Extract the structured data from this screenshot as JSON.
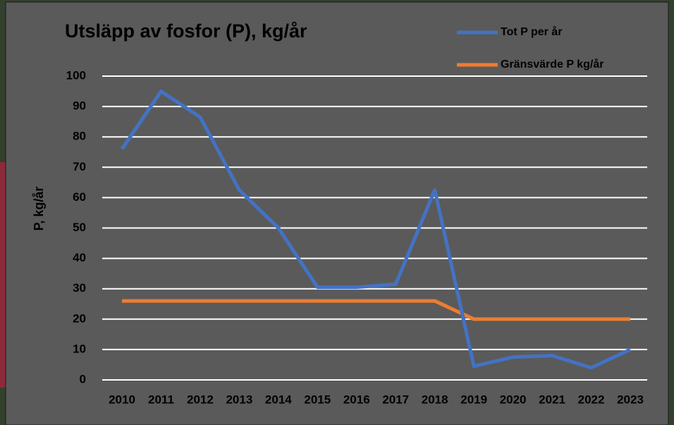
{
  "chart_data": {
    "type": "line",
    "title": "Utsläpp av fosfor (P), kg/år",
    "y_label": "P, kg/år",
    "categories": [
      "2010",
      "2011",
      "2012",
      "2013",
      "2014",
      "2015",
      "2016",
      "2017",
      "2018",
      "2019",
      "2020",
      "2021",
      "2022",
      "2023"
    ],
    "series": [
      {
        "name": "Tot P per år",
        "color": "#4472c4",
        "values": [
          76,
          95,
          86.5,
          62.5,
          50,
          30.5,
          30.5,
          31.5,
          62.5,
          4.5,
          7.5,
          8,
          4,
          10
        ]
      },
      {
        "name": "Gränsvärde P kg/år",
        "color": "#ed7d31",
        "values": [
          26,
          26,
          26,
          26,
          26,
          26,
          26,
          26,
          26,
          20,
          20,
          20,
          20,
          20
        ]
      }
    ],
    "ylim": [
      0,
      100
    ],
    "yticks": [
      0,
      10,
      20,
      30,
      40,
      50,
      60,
      70,
      80,
      90,
      100
    ],
    "grid": true,
    "legend": "top-right"
  }
}
